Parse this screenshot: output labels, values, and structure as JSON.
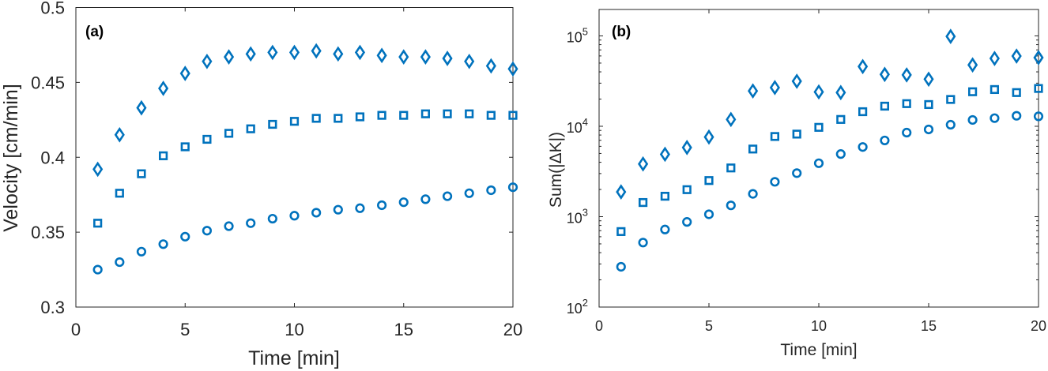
{
  "chart_data": [
    {
      "type": "scatter",
      "panel_label": "(a)",
      "title": "",
      "xlabel": "Time [min]",
      "ylabel": "Velocity [cm/min]",
      "xlim": [
        0,
        20
      ],
      "ylim": [
        0.3,
        0.5
      ],
      "yscale": "linear",
      "xticks": [
        0,
        5,
        10,
        15,
        20
      ],
      "xtick_labels": [
        "0",
        "5",
        "10",
        "15",
        "20"
      ],
      "yticks": [
        0.3,
        0.35,
        0.4,
        0.45,
        0.5
      ],
      "ytick_labels": [
        "0.3",
        "0.35",
        "0.4",
        "0.45",
        "0.5"
      ],
      "grid": false,
      "x": [
        1,
        2,
        3,
        4,
        5,
        6,
        7,
        8,
        9,
        10,
        11,
        12,
        13,
        14,
        15,
        16,
        17,
        18,
        19,
        20
      ],
      "series": [
        {
          "name": "diamond",
          "marker": "diamond",
          "color": "#0072BD",
          "values": [
            0.392,
            0.415,
            0.433,
            0.446,
            0.456,
            0.464,
            0.467,
            0.469,
            0.47,
            0.47,
            0.471,
            0.469,
            0.47,
            0.468,
            0.467,
            0.467,
            0.466,
            0.464,
            0.461,
            0.459
          ]
        },
        {
          "name": "square",
          "marker": "square",
          "color": "#0072BD",
          "values": [
            0.356,
            0.376,
            0.389,
            0.401,
            0.407,
            0.412,
            0.416,
            0.419,
            0.422,
            0.424,
            0.426,
            0.426,
            0.427,
            0.428,
            0.428,
            0.429,
            0.429,
            0.429,
            0.428,
            0.428
          ]
        },
        {
          "name": "circle",
          "marker": "circle",
          "color": "#0072BD",
          "values": [
            0.325,
            0.33,
            0.337,
            0.342,
            0.347,
            0.351,
            0.354,
            0.356,
            0.359,
            0.361,
            0.363,
            0.365,
            0.366,
            0.368,
            0.37,
            0.372,
            0.374,
            0.376,
            0.378,
            0.38
          ]
        }
      ]
    },
    {
      "type": "scatter",
      "panel_label": "(b)",
      "title": "",
      "xlabel": "Time [min]",
      "ylabel": "Sum(|ΔK|)",
      "xlim": [
        0,
        20
      ],
      "ylim": [
        100,
        196000
      ],
      "yscale": "log",
      "xticks": [
        0,
        5,
        10,
        15,
        20
      ],
      "xtick_labels": [
        "0",
        "5",
        "10",
        "15",
        "20"
      ],
      "yticks": [
        100,
        1000,
        10000,
        100000
      ],
      "ytick_base": "10",
      "ytick_exponents": [
        "2",
        "3",
        "4",
        "5"
      ],
      "grid": false,
      "x": [
        1,
        2,
        3,
        4,
        5,
        6,
        7,
        8,
        9,
        10,
        11,
        12,
        13,
        14,
        15,
        16,
        17,
        18,
        19,
        20
      ],
      "series": [
        {
          "name": "diamond",
          "marker": "diamond",
          "color": "#0072BD",
          "values": [
            1880,
            3830,
            4900,
            5820,
            7600,
            11900,
            24600,
            26800,
            31500,
            24000,
            23600,
            45800,
            37500,
            37000,
            33200,
            98700,
            47700,
            56300,
            59800,
            57500
          ]
        },
        {
          "name": "square",
          "marker": "square",
          "color": "#0072BD",
          "values": [
            684,
            1434,
            1683,
            1990,
            2510,
            3460,
            5600,
            7710,
            8190,
            9730,
            11900,
            14500,
            16700,
            17800,
            17400,
            19800,
            24100,
            25500,
            23600,
            26200
          ]
        },
        {
          "name": "circle",
          "marker": "circle",
          "color": "#0072BD",
          "values": [
            279,
            517,
            721,
            875,
            1062,
            1333,
            1787,
            2430,
            3030,
            3900,
            4930,
            5900,
            6970,
            8510,
            9230,
            10400,
            11750,
            12300,
            13060,
            12880
          ]
        }
      ]
    }
  ]
}
